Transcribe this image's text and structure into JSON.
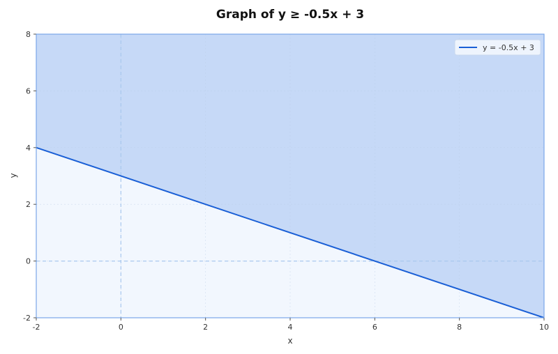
{
  "chart_data": {
    "type": "line",
    "title": "Graph of y ≥ -0.5x + 3",
    "xlabel": "x",
    "ylabel": "y",
    "xlim": [
      -2,
      10
    ],
    "ylim": [
      -2,
      8
    ],
    "xticks": [
      -2,
      0,
      2,
      4,
      6,
      8,
      10
    ],
    "yticks": [
      -2,
      0,
      2,
      4,
      6,
      8
    ],
    "grid": true,
    "legend": {
      "placement": "top-right",
      "entries": [
        "y = -0.5x + 3"
      ]
    },
    "series": [
      {
        "name": "y = -0.5x + 3",
        "x": [
          -2,
          10
        ],
        "y": [
          4,
          -2
        ],
        "color": "#1a5fd6"
      }
    ],
    "shaded_region": {
      "relation": "above",
      "color": "#c6d9f7"
    },
    "unshaded_color": "#f2f7fe",
    "axis_lines": {
      "x": 0,
      "y": 0,
      "color": "#a9c8ee"
    }
  }
}
